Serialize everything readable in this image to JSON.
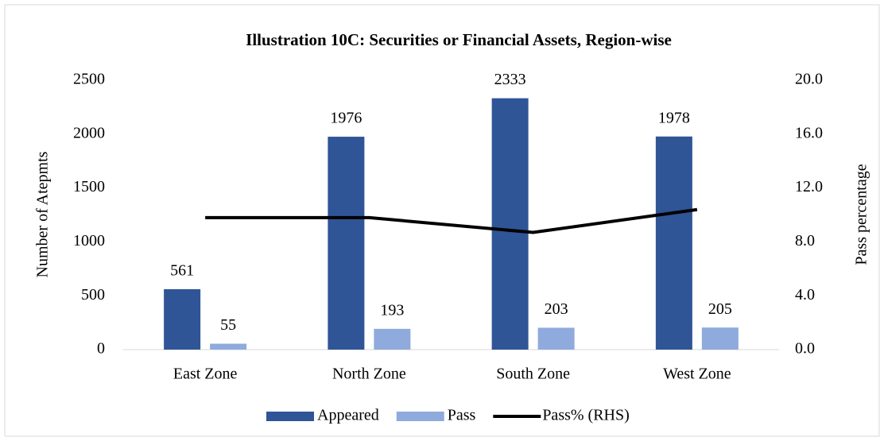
{
  "chart_data": {
    "type": "bar",
    "title": "Illustration 10C: Securities or Financial Assets, Region-wise",
    "categories": [
      "East Zone",
      "North Zone",
      "South Zone",
      "West Zone"
    ],
    "series": [
      {
        "name": "Appeared",
        "color": "#2f5597",
        "type": "bar",
        "values": [
          561,
          1976,
          2333,
          1978
        ]
      },
      {
        "name": "Pass",
        "color": "#8faadc",
        "type": "bar",
        "values": [
          55,
          193,
          203,
          205
        ]
      },
      {
        "name": "Pass% (RHS)",
        "color": "#000000",
        "type": "line",
        "axis": "y2",
        "values": [
          9.8,
          9.8,
          8.7,
          10.4
        ]
      }
    ],
    "ylabel": "Number of Atepmts",
    "y2label": "Pass percentage",
    "ylim": [
      0,
      2500
    ],
    "yticks": [
      0,
      500,
      1000,
      1500,
      2000,
      2500
    ],
    "y2lim": [
      0,
      20
    ],
    "y2ticks": [
      {
        "value": 0,
        "label": "0.0"
      },
      {
        "value": 4,
        "label": "4.0"
      },
      {
        "value": 8,
        "label": "8.0"
      },
      {
        "value": 12,
        "label": "12.0"
      },
      {
        "value": 16,
        "label": "16.0"
      },
      {
        "value": 20,
        "label": "20.0"
      }
    ],
    "legend": "bottom",
    "grid": false
  }
}
